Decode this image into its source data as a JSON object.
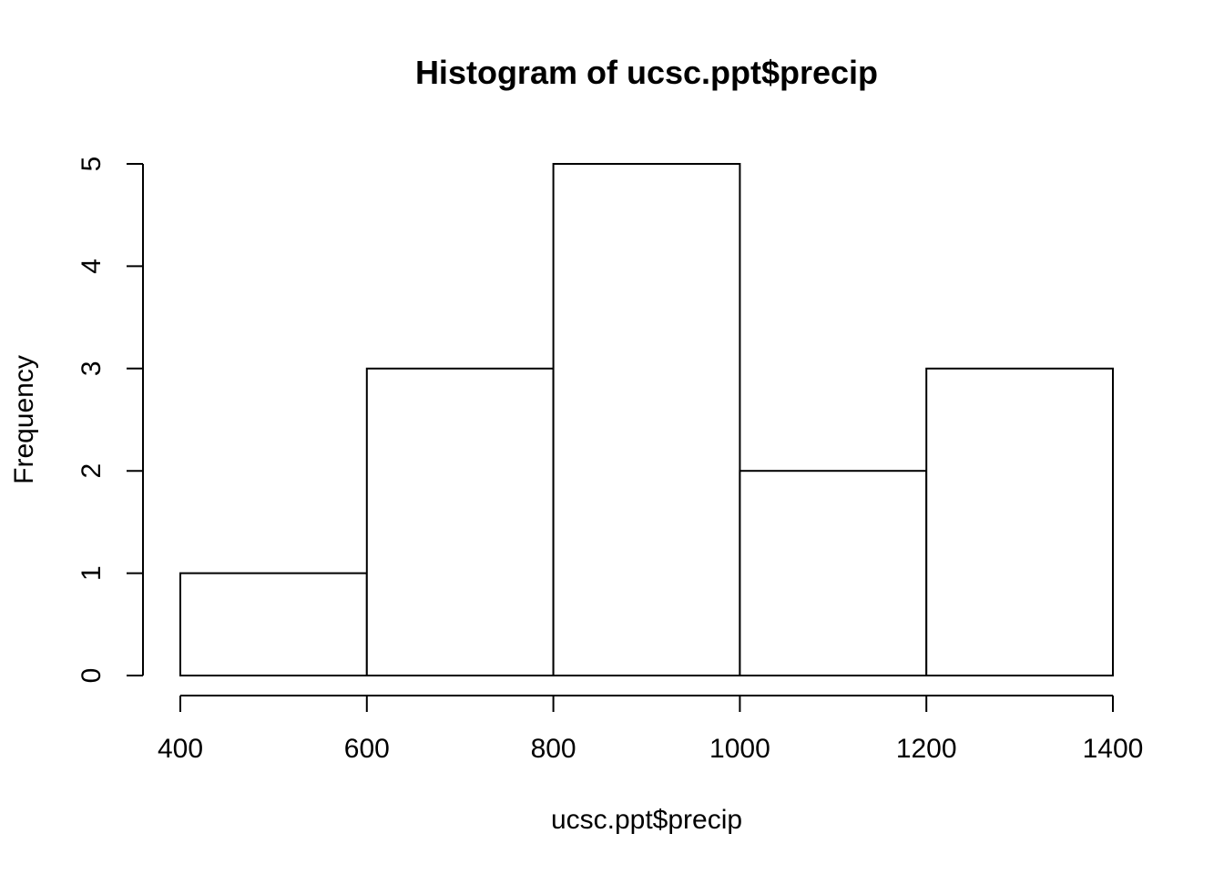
{
  "chart_data": {
    "type": "bar",
    "title": "Histogram of ucsc.ppt$precip",
    "xlabel": "ucsc.ppt$precip",
    "ylabel": "Frequency",
    "bins": [
      {
        "from": 400,
        "to": 600,
        "count": 1
      },
      {
        "from": 600,
        "to": 800,
        "count": 3
      },
      {
        "from": 800,
        "to": 1000,
        "count": 5
      },
      {
        "from": 1000,
        "to": 1200,
        "count": 2
      },
      {
        "from": 1200,
        "to": 1400,
        "count": 3
      }
    ],
    "xlim": [
      400,
      1400
    ],
    "ylim": [
      0,
      5
    ],
    "x_ticks": [
      "400",
      "600",
      "800",
      "1000",
      "1200",
      "1400"
    ],
    "y_ticks": [
      "0",
      "1",
      "2",
      "3",
      "4",
      "5"
    ],
    "grid": false,
    "legend": "none",
    "colors": {
      "bar_fill": "#ffffff",
      "bar_stroke": "#000000"
    }
  }
}
